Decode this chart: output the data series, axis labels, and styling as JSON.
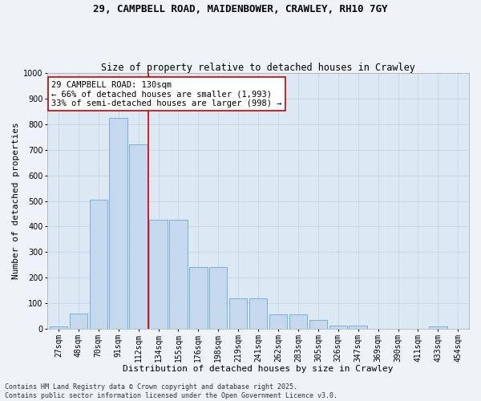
{
  "title": "29, CAMPBELL ROAD, MAIDENBOWER, CRAWLEY, RH10 7GY",
  "subtitle": "Size of property relative to detached houses in Crawley",
  "xlabel": "Distribution of detached houses by size in Crawley",
  "ylabel": "Number of detached properties",
  "categories": [
    "27sqm",
    "48sqm",
    "70sqm",
    "91sqm",
    "112sqm",
    "134sqm",
    "155sqm",
    "176sqm",
    "198sqm",
    "219sqm",
    "241sqm",
    "262sqm",
    "283sqm",
    "305sqm",
    "326sqm",
    "347sqm",
    "369sqm",
    "390sqm",
    "411sqm",
    "433sqm",
    "454sqm"
  ],
  "values": [
    8,
    60,
    505,
    825,
    720,
    425,
    425,
    240,
    240,
    120,
    120,
    55,
    55,
    35,
    12,
    12,
    0,
    0,
    0,
    8,
    0
  ],
  "bar_color": "#c5d8ed",
  "bar_edge_color": "#6aaad4",
  "vline_x_index": 5,
  "vline_color": "#cc0000",
  "annotation_text": "29 CAMPBELL ROAD: 130sqm\n← 66% of detached houses are smaller (1,993)\n33% of semi-detached houses are larger (998) →",
  "annotation_box_color": "#ffffff",
  "annotation_box_edge_color": "#cc0000",
  "ylim": [
    0,
    1000
  ],
  "yticks": [
    0,
    100,
    200,
    300,
    400,
    500,
    600,
    700,
    800,
    900,
    1000
  ],
  "grid_color": "#c5d5e5",
  "bg_color": "#dce8f2",
  "fig_bg_color": "#eef3f8",
  "footer_text": "Contains HM Land Registry data © Crown copyright and database right 2025.\nContains public sector information licensed under the Open Government Licence v3.0.",
  "title_fontsize": 9,
  "subtitle_fontsize": 8.5,
  "axis_label_fontsize": 8,
  "tick_fontsize": 7,
  "annotation_fontsize": 7.5,
  "footer_fontsize": 6
}
